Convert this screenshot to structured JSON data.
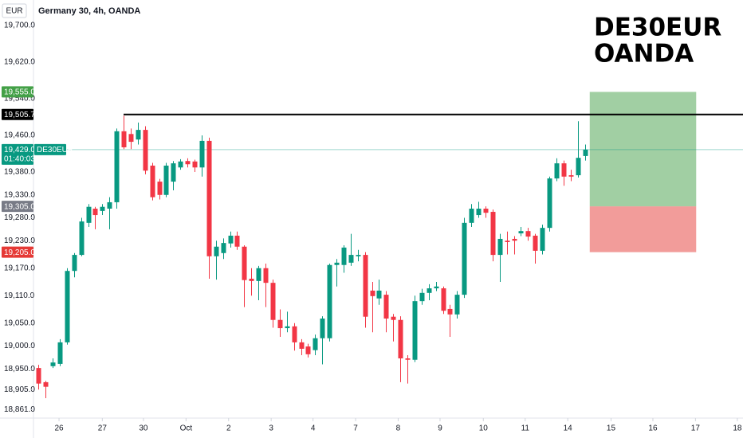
{
  "chart_data": {
    "type": "candlestick",
    "title": "Germany 30, 4h, OANDA",
    "currency": "EUR",
    "watermark": [
      "DE30EUR",
      "OANDA"
    ],
    "up_color": "#089981",
    "down_color": "#f23645",
    "open": [
      18952,
      18921,
      18956,
      18961,
      19008,
      19164,
      19199,
      19269,
      19300,
      19295,
      19300,
      19314,
      19469,
      19463,
      19451,
      19472,
      19394,
      19359,
      19330,
      19359,
      19390,
      19404,
      19403,
      19390,
      19448,
      19196,
      19203,
      19224,
      19241,
      19217,
      19147,
      19142,
      19170,
      19138,
      19057,
      19039,
      19043,
      19008,
      18999,
      18991,
      19017,
      19017,
      19177,
      19177,
      19182,
      19196,
      19199,
      19121,
      19104,
      19112,
      19064,
      19057,
      18973,
      18970,
      19098,
      19116,
      19126,
      19126,
      19081,
      19069,
      19112,
      19269,
      19286,
      19300,
      19293,
      19199,
      19230,
      19234,
      19246,
      19251,
      19241,
      19208,
      19258,
      19366,
      19399,
      19373,
      19373,
      19415
    ],
    "high": [
      18959,
      18924,
      18973,
      19015,
      19170,
      19203,
      19280,
      19310,
      19304,
      19310,
      19325,
      19475,
      19503,
      19475,
      19488,
      19480,
      19400,
      19365,
      19400,
      19404,
      19408,
      19410,
      19407,
      19460,
      19455,
      19230,
      19235,
      19250,
      19250,
      19220,
      19170,
      19175,
      19180,
      19145,
      19080,
      19075,
      19050,
      19015,
      19005,
      19025,
      19065,
      19180,
      19190,
      19220,
      19245,
      19210,
      19205,
      19140,
      19145,
      19120,
      19070,
      19065,
      18980,
      19110,
      19125,
      19135,
      19140,
      19130,
      19090,
      19120,
      19280,
      19310,
      19315,
      19305,
      19298,
      19245,
      19250,
      19240,
      19260,
      19258,
      19245,
      19265,
      19370,
      19410,
      19405,
      19385,
      19491,
      19440
    ],
    "low": [
      18905,
      18886,
      18952,
      18956,
      19003,
      19150,
      19196,
      19260,
      19255,
      19286,
      19255,
      19300,
      19430,
      19430,
      19440,
      19375,
      19318,
      19320,
      19325,
      19340,
      19385,
      19390,
      19380,
      19370,
      19147,
      19145,
      19190,
      19215,
      19210,
      19085,
      19110,
      19100,
      19085,
      19040,
      19020,
      19030,
      18990,
      18980,
      18975,
      18980,
      18960,
      19010,
      19130,
      19160,
      19175,
      19185,
      19040,
      19030,
      19090,
      19030,
      19010,
      18921,
      18918,
      18965,
      19090,
      19100,
      19120,
      19070,
      19020,
      19060,
      19105,
      19260,
      19280,
      19280,
      19185,
      19140,
      19200,
      19200,
      19240,
      19230,
      19180,
      19200,
      19250,
      19360,
      19350,
      19360,
      19368,
      19405
    ],
    "close": [
      18918,
      18911,
      18964,
      19008,
      19164,
      19199,
      19272,
      19304,
      19286,
      19304,
      19314,
      19469,
      19434,
      19446,
      19472,
      19383,
      19325,
      19330,
      19394,
      19399,
      19403,
      19397,
      19390,
      19448,
      19196,
      19217,
      19225,
      19241,
      19217,
      19144,
      19142,
      19170,
      19138,
      19057,
      19039,
      19043,
      19008,
      18994,
      18982,
      19017,
      19060,
      19177,
      19182,
      19215,
      19199,
      19199,
      19064,
      19109,
      19121,
      19060,
      19057,
      18973,
      18970,
      19098,
      19116,
      19126,
      19130,
      19077,
      19069,
      19112,
      19269,
      19300,
      19300,
      19291,
      19199,
      19234,
      19227,
      19230,
      19251,
      19239,
      19208,
      19258,
      19366,
      19399,
      19370,
      19370,
      19411,
      19429
    ],
    "xlim": [
      -0.7,
      99.3
    ],
    "xticks": [
      {
        "value": 2.9,
        "label": "26"
      },
      {
        "value": 9.0,
        "label": "27"
      },
      {
        "value": 14.8,
        "label": "30"
      },
      {
        "value": 20.8,
        "label": "Oct"
      },
      {
        "value": 26.8,
        "label": "2"
      },
      {
        "value": 32.8,
        "label": "3"
      },
      {
        "value": 38.7,
        "label": "4"
      },
      {
        "value": 44.7,
        "label": "7"
      },
      {
        "value": 50.7,
        "label": "8"
      },
      {
        "value": 56.6,
        "label": "9"
      },
      {
        "value": 62.7,
        "label": "10"
      },
      {
        "value": 68.6,
        "label": "11"
      },
      {
        "value": 74.6,
        "label": "14"
      },
      {
        "value": 80.7,
        "label": "15"
      },
      {
        "value": 86.6,
        "label": "16"
      },
      {
        "value": 92.6,
        "label": "17"
      },
      {
        "value": 98.5,
        "label": "18"
      }
    ],
    "ylim": [
      18842.6,
      19755.7
    ],
    "yticks": [
      {
        "value": 19700,
        "label": "19,700.0"
      },
      {
        "value": 19620,
        "label": "19,620.0"
      },
      {
        "value": 19540,
        "label": "19,540.0"
      },
      {
        "value": 19460,
        "label": "19,460.0"
      },
      {
        "value": 19380,
        "label": "19,380.0"
      },
      {
        "value": 19330,
        "label": "19,330.0"
      },
      {
        "value": 19280,
        "label": "19,280.0"
      },
      {
        "value": 19230,
        "label": "19,230.0"
      },
      {
        "value": 19170,
        "label": "19,170.0"
      },
      {
        "value": 19110,
        "label": "19,110.0"
      },
      {
        "value": 19050,
        "label": "19,050.0"
      },
      {
        "value": 19000,
        "label": "19,000.0"
      },
      {
        "value": 18950,
        "label": "18,950.0"
      },
      {
        "value": 18905,
        "label": "18,905.0"
      },
      {
        "value": 18861,
        "label": "18,861.0"
      }
    ],
    "grid": false,
    "resistance": {
      "value": 19505.7,
      "label": "19,505.7",
      "x_start": 12,
      "color": "#000000"
    },
    "last_price": {
      "value": 19429,
      "label": "19,429.0",
      "countdown": "01:40:03",
      "symbol": "DE30EUR",
      "color": "#089981"
    },
    "position": {
      "x_start": 77.7,
      "x_end": 92.7,
      "target": {
        "value": 19555,
        "label": "19,555.0",
        "color": "#43a047"
      },
      "entry": {
        "value": 19305,
        "label": "19,305.0",
        "color": "#787b86"
      },
      "stop": {
        "value": 19205,
        "label": "19,205.0",
        "color": "#e53935"
      }
    }
  }
}
